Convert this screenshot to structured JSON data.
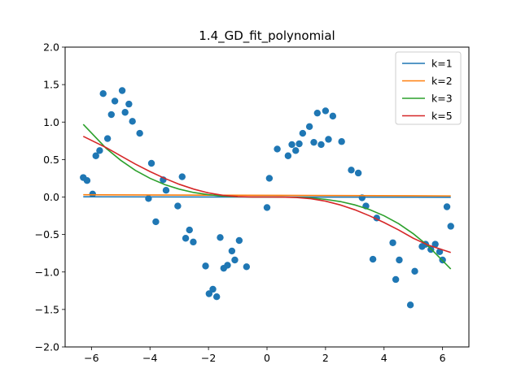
{
  "chart_data": {
    "type": "scatter",
    "title": "1.4_GD_fit_polynomial",
    "xlabel": "",
    "ylabel": "",
    "xlim": [
      -6.9,
      6.9
    ],
    "ylim": [
      -2.0,
      2.0
    ],
    "xticks": [
      -6,
      -4,
      -2,
      0,
      2,
      4,
      6
    ],
    "yticks": [
      -2.0,
      -1.5,
      -1.0,
      -0.5,
      0.0,
      0.5,
      1.0,
      1.5,
      2.0
    ],
    "xtick_labels": [
      "−6",
      "−4",
      "−2",
      "0",
      "2",
      "4",
      "6"
    ],
    "ytick_labels": [
      "−2.0",
      "−1.5",
      "−1.0",
      "−0.5",
      "0.0",
      "0.5",
      "1.0",
      "1.5",
      "2.0"
    ],
    "grid": false,
    "legend_position": "top-right",
    "scatter": {
      "color": "#1f77b4",
      "points": [
        [
          -6.28,
          0.26
        ],
        [
          -6.15,
          0.22
        ],
        [
          -5.96,
          0.04
        ],
        [
          -5.85,
          0.55
        ],
        [
          -5.72,
          0.62
        ],
        [
          -5.6,
          1.38
        ],
        [
          -5.45,
          0.78
        ],
        [
          -5.32,
          1.1
        ],
        [
          -5.2,
          1.28
        ],
        [
          -4.95,
          1.42
        ],
        [
          -4.85,
          1.13
        ],
        [
          -4.72,
          1.24
        ],
        [
          -4.6,
          1.01
        ],
        [
          -4.35,
          0.85
        ],
        [
          -4.05,
          -0.02
        ],
        [
          -3.95,
          0.45
        ],
        [
          -3.8,
          -0.33
        ],
        [
          -3.55,
          0.23
        ],
        [
          -3.45,
          0.09
        ],
        [
          -3.05,
          -0.12
        ],
        [
          -2.9,
          0.27
        ],
        [
          -2.78,
          -0.55
        ],
        [
          -2.65,
          -0.44
        ],
        [
          -2.52,
          -0.6
        ],
        [
          -2.1,
          -0.92
        ],
        [
          -1.98,
          -1.29
        ],
        [
          -1.85,
          -1.23
        ],
        [
          -1.72,
          -1.33
        ],
        [
          -1.6,
          -0.54
        ],
        [
          -1.48,
          -0.95
        ],
        [
          -1.35,
          -0.91
        ],
        [
          -1.2,
          -0.72
        ],
        [
          -1.1,
          -0.84
        ],
        [
          -0.95,
          -0.58
        ],
        [
          -0.7,
          -0.93
        ],
        [
          0.0,
          -0.14
        ],
        [
          0.08,
          0.25
        ],
        [
          0.35,
          0.64
        ],
        [
          0.72,
          0.55
        ],
        [
          0.85,
          0.7
        ],
        [
          0.98,
          0.62
        ],
        [
          1.1,
          0.71
        ],
        [
          1.22,
          0.85
        ],
        [
          1.45,
          0.94
        ],
        [
          1.6,
          0.73
        ],
        [
          1.72,
          1.12
        ],
        [
          1.85,
          0.7
        ],
        [
          2.0,
          1.15
        ],
        [
          2.1,
          0.77
        ],
        [
          2.25,
          1.08
        ],
        [
          2.55,
          0.74
        ],
        [
          2.88,
          0.36
        ],
        [
          3.12,
          0.32
        ],
        [
          3.25,
          -0.01
        ],
        [
          3.38,
          -0.12
        ],
        [
          3.62,
          -0.83
        ],
        [
          3.75,
          -0.28
        ],
        [
          4.3,
          -0.61
        ],
        [
          4.4,
          -1.1
        ],
        [
          4.52,
          -0.84
        ],
        [
          4.9,
          -1.44
        ],
        [
          5.05,
          -0.99
        ],
        [
          5.3,
          -0.66
        ],
        [
          5.42,
          -0.63
        ],
        [
          5.6,
          -0.7
        ],
        [
          5.75,
          -0.63
        ],
        [
          5.9,
          -0.73
        ],
        [
          6.0,
          -0.84
        ],
        [
          6.15,
          -0.13
        ],
        [
          6.28,
          -0.39
        ]
      ]
    },
    "series": [
      {
        "name": "k=1",
        "color": "#1f77b4",
        "x": [
          -6.28,
          6.28
        ],
        "y": [
          0.003,
          -0.003
        ]
      },
      {
        "name": "k=2",
        "color": "#ff7f0e",
        "x": [
          -6.28,
          6.28
        ],
        "y": [
          0.03,
          0.015
        ]
      },
      {
        "name": "k=3",
        "color": "#2ca02c",
        "x": [
          -6.28,
          -5.5,
          -5.0,
          -4.5,
          -4.0,
          -3.5,
          -3.0,
          -2.5,
          -2.0,
          -1.5,
          -1.0,
          -0.5,
          0.0,
          0.5,
          1.0,
          1.5,
          2.0,
          2.5,
          3.0,
          3.5,
          4.0,
          4.5,
          5.0,
          5.5,
          6.28
        ],
        "y": [
          0.97,
          0.65,
          0.49,
          0.356,
          0.25,
          0.167,
          0.105,
          0.06,
          0.031,
          0.013,
          0.004,
          0.0005,
          0.0,
          -0.0005,
          -0.004,
          -0.013,
          -0.031,
          -0.06,
          -0.105,
          -0.167,
          -0.25,
          -0.356,
          -0.49,
          -0.65,
          -0.96
        ]
      },
      {
        "name": "k=5",
        "color": "#d62728",
        "x": [
          -6.28,
          -5.5,
          -5.0,
          -4.5,
          -4.0,
          -3.5,
          -3.0,
          -2.5,
          -2.0,
          -1.5,
          -1.0,
          -0.5,
          0.0,
          0.5,
          1.0,
          1.5,
          2.0,
          2.5,
          3.0,
          3.5,
          4.0,
          4.5,
          5.0,
          5.5,
          6.28
        ],
        "y": [
          0.81,
          0.66,
          0.55,
          0.44,
          0.34,
          0.25,
          0.17,
          0.105,
          0.055,
          0.022,
          0.006,
          0.001,
          0.0,
          -0.001,
          -0.006,
          -0.022,
          -0.055,
          -0.105,
          -0.17,
          -0.25,
          -0.34,
          -0.44,
          -0.55,
          -0.64,
          -0.74
        ]
      }
    ]
  }
}
